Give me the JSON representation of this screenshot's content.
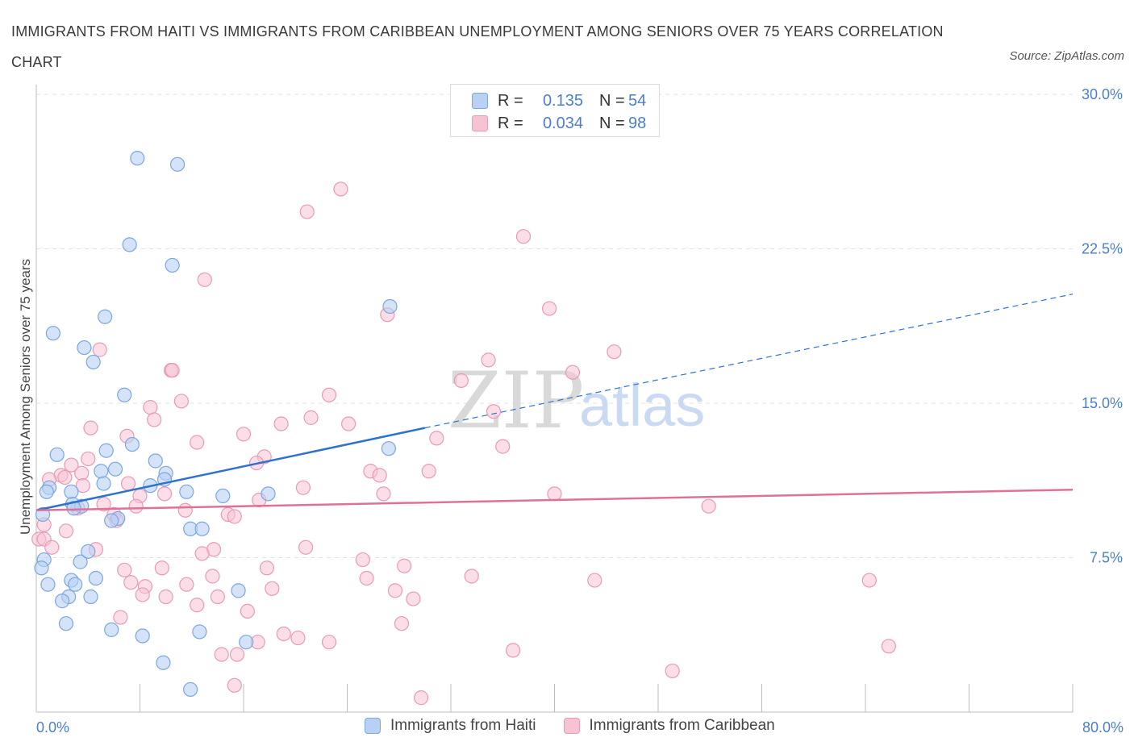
{
  "title": "IMMIGRANTS FROM HAITI VS IMMIGRANTS FROM CARIBBEAN UNEMPLOYMENT AMONG SENIORS OVER 75 YEARS CORRELATION CHART",
  "source": "Source: ZipAtlas.com",
  "watermark": {
    "zip": "ZIP",
    "atlas": "atlas"
  },
  "colors": {
    "haiti_fill": "#b8d0f4",
    "haiti_stroke": "#7aa6e3",
    "haiti_line": "#2f72cc",
    "carib_fill": "#f7c3d3",
    "carib_stroke": "#e99ab4",
    "carib_line": "#e0709a",
    "tick_text": "#4a7fcf",
    "grid": "#e2e2e2"
  },
  "legend": {
    "r_label": "R =",
    "n_label": "N =",
    "rows": [
      {
        "series": "haiti",
        "r": "0.135",
        "n": "54"
      },
      {
        "series": "carib",
        "r": "0.034",
        "n": "98"
      }
    ]
  },
  "bottom_legend": {
    "haiti": "Immigrants from Haiti",
    "carib": "Immigrants from Caribbean"
  },
  "chart_data": {
    "type": "scatter",
    "title": "IMMIGRANTS FROM HAITI VS IMMIGRANTS FROM CARIBBEAN UNEMPLOYMENT AMONG SENIORS OVER 75 YEARS CORRELATION CHART",
    "xlabel": "",
    "ylabel": "Unemployment Among Seniors over 75 years",
    "xlim": [
      0,
      80
    ],
    "ylim": [
      0,
      30
    ],
    "x_tick_labels": [
      "0.0%",
      "80.0%"
    ],
    "y_ticks": [
      7.5,
      15.0,
      22.5,
      30.0
    ],
    "y_tick_labels": [
      "7.5%",
      "15.0%",
      "22.5%",
      "30.0%"
    ],
    "grid": "horizontal dashed",
    "legend_position": "top-center",
    "series": [
      {
        "name": "Immigrants from Haiti",
        "R": 0.135,
        "N": 54,
        "trend": {
          "x": [
            0,
            30
          ],
          "y": [
            9.8,
            13.8
          ],
          "extended_to": [
            80,
            20.3
          ]
        },
        "points": [
          [
            7.8,
            26.9
          ],
          [
            10.9,
            26.6
          ],
          [
            7.2,
            22.7
          ],
          [
            10.5,
            21.7
          ],
          [
            1.3,
            18.4
          ],
          [
            5.3,
            19.2
          ],
          [
            3.7,
            17.7
          ],
          [
            4.4,
            17.0
          ],
          [
            27.3,
            19.7
          ],
          [
            6.8,
            15.4
          ],
          [
            1.6,
            12.5
          ],
          [
            5.4,
            12.7
          ],
          [
            7.4,
            13.0
          ],
          [
            6.1,
            11.8
          ],
          [
            2.7,
            10.7
          ],
          [
            8.8,
            11.0
          ],
          [
            9.2,
            12.2
          ],
          [
            5.0,
            11.7
          ],
          [
            10.0,
            11.6
          ],
          [
            9.9,
            11.3
          ],
          [
            2.8,
            10.1
          ],
          [
            1.0,
            10.9
          ],
          [
            3.5,
            10.0
          ],
          [
            5.2,
            11.1
          ],
          [
            11.6,
            10.7
          ],
          [
            14.4,
            10.5
          ],
          [
            17.9,
            10.6
          ],
          [
            27.2,
            12.8
          ],
          [
            6.3,
            9.4
          ],
          [
            11.9,
            8.9
          ],
          [
            12.8,
            8.9
          ],
          [
            0.5,
            9.6
          ],
          [
            5.8,
            9.3
          ],
          [
            2.9,
            9.9
          ],
          [
            0.6,
            7.4
          ],
          [
            3.4,
            7.3
          ],
          [
            4.0,
            7.8
          ],
          [
            0.4,
            7.0
          ],
          [
            0.9,
            6.2
          ],
          [
            2.7,
            6.4
          ],
          [
            3.0,
            6.2
          ],
          [
            4.6,
            6.5
          ],
          [
            15.6,
            5.9
          ],
          [
            2.5,
            5.6
          ],
          [
            2.0,
            5.4
          ],
          [
            4.2,
            5.6
          ],
          [
            2.3,
            4.3
          ],
          [
            5.8,
            4.0
          ],
          [
            8.2,
            3.7
          ],
          [
            12.6,
            3.9
          ],
          [
            16.2,
            3.4
          ],
          [
            9.8,
            2.4
          ],
          [
            11.9,
            1.1
          ],
          [
            0.8,
            10.7
          ]
        ]
      },
      {
        "name": "Immigrants from Caribbean",
        "R": 0.034,
        "N": 98,
        "trend": {
          "x": [
            0,
            80
          ],
          "y": [
            9.8,
            10.8
          ]
        },
        "points": [
          [
            23.5,
            25.4
          ],
          [
            20.9,
            24.3
          ],
          [
            37.6,
            23.1
          ],
          [
            13.0,
            21.0
          ],
          [
            39.6,
            19.6
          ],
          [
            27.1,
            19.3
          ],
          [
            4.9,
            17.6
          ],
          [
            44.6,
            17.5
          ],
          [
            34.9,
            17.1
          ],
          [
            10.4,
            16.6
          ],
          [
            41.4,
            16.5
          ],
          [
            32.8,
            16.1
          ],
          [
            22.6,
            15.4
          ],
          [
            11.2,
            15.1
          ],
          [
            8.8,
            14.8
          ],
          [
            35.3,
            14.6
          ],
          [
            9.1,
            14.2
          ],
          [
            21.2,
            14.3
          ],
          [
            18.9,
            14.0
          ],
          [
            24.1,
            14.0
          ],
          [
            4.2,
            13.8
          ],
          [
            16.0,
            13.5
          ],
          [
            30.9,
            13.3
          ],
          [
            12.4,
            13.1
          ],
          [
            36.0,
            12.9
          ],
          [
            17.6,
            12.4
          ],
          [
            4.0,
            12.3
          ],
          [
            17.0,
            12.1
          ],
          [
            2.7,
            12.0
          ],
          [
            25.8,
            11.7
          ],
          [
            1.9,
            11.5
          ],
          [
            3.5,
            11.6
          ],
          [
            26.5,
            11.5
          ],
          [
            2.2,
            11.4
          ],
          [
            7.1,
            11.1
          ],
          [
            3.6,
            11.0
          ],
          [
            20.6,
            10.9
          ],
          [
            9.9,
            10.6
          ],
          [
            26.8,
            10.6
          ],
          [
            40.0,
            10.6
          ],
          [
            8.0,
            10.5
          ],
          [
            17.2,
            10.3
          ],
          [
            5.2,
            10.1
          ],
          [
            7.7,
            10.0
          ],
          [
            51.9,
            10.0
          ],
          [
            3.2,
            9.9
          ],
          [
            6.0,
            9.6
          ],
          [
            11.5,
            9.8
          ],
          [
            14.8,
            9.6
          ],
          [
            15.3,
            9.5
          ],
          [
            6.2,
            9.3
          ],
          [
            0.6,
            9.1
          ],
          [
            2.3,
            8.8
          ],
          [
            0.2,
            8.4
          ],
          [
            0.6,
            8.4
          ],
          [
            1.2,
            8.0
          ],
          [
            20.8,
            8.0
          ],
          [
            13.7,
            7.9
          ],
          [
            4.6,
            7.9
          ],
          [
            12.8,
            7.7
          ],
          [
            25.2,
            7.4
          ],
          [
            28.4,
            7.1
          ],
          [
            6.8,
            6.9
          ],
          [
            9.7,
            7.0
          ],
          [
            17.8,
            7.0
          ],
          [
            33.6,
            6.6
          ],
          [
            43.1,
            6.4
          ],
          [
            64.3,
            6.4
          ],
          [
            11.6,
            6.2
          ],
          [
            7.3,
            6.3
          ],
          [
            8.4,
            6.1
          ],
          [
            25.5,
            6.5
          ],
          [
            13.6,
            6.6
          ],
          [
            18.2,
            6.0
          ],
          [
            27.7,
            5.9
          ],
          [
            8.2,
            5.7
          ],
          [
            10.0,
            5.6
          ],
          [
            14.0,
            5.6
          ],
          [
            29.1,
            5.5
          ],
          [
            12.4,
            5.2
          ],
          [
            16.3,
            4.9
          ],
          [
            6.5,
            4.6
          ],
          [
            28.2,
            4.3
          ],
          [
            19.1,
            3.8
          ],
          [
            20.2,
            3.6
          ],
          [
            22.6,
            3.4
          ],
          [
            17.1,
            3.4
          ],
          [
            65.8,
            3.2
          ],
          [
            36.8,
            3.0
          ],
          [
            14.3,
            2.8
          ],
          [
            15.5,
            2.8
          ],
          [
            49.1,
            2.0
          ],
          [
            15.3,
            1.3
          ],
          [
            29.7,
            0.7
          ],
          [
            1.0,
            11.3
          ],
          [
            10.5,
            16.6
          ],
          [
            7.0,
            13.4
          ],
          [
            30.3,
            11.7
          ]
        ]
      }
    ]
  }
}
